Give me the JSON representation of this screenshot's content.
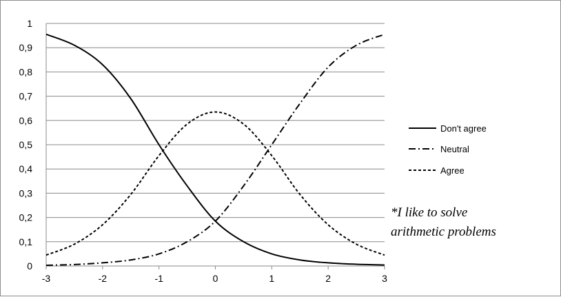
{
  "chart_data": {
    "type": "line",
    "title": "",
    "xlabel": "",
    "ylabel": "",
    "xlim": [
      -3,
      3
    ],
    "ylim": [
      0,
      1
    ],
    "x_ticks": [
      "-3",
      "-2",
      "-1",
      "0",
      "1",
      "2",
      "3"
    ],
    "y_ticks": [
      "0",
      "0,1",
      "0,2",
      "0,3",
      "0,4",
      "0,5",
      "0,6",
      "0,7",
      "0,8",
      "0,9",
      "1"
    ],
    "grid": "horizontal",
    "legend_position": "right",
    "x": [
      -3,
      -2.5,
      -2,
      -1.5,
      -1,
      -0.5,
      0,
      0.5,
      1,
      1.5,
      2,
      2.5,
      3
    ],
    "series": [
      {
        "name": "Don't agree",
        "line_style": "solid",
        "values": [
          0.955,
          0.91,
          0.83,
          0.69,
          0.5,
          0.33,
          0.185,
          0.1,
          0.05,
          0.025,
          0.013,
          0.007,
          0.004
        ]
      },
      {
        "name": "Neutral",
        "line_style": "dash-dot",
        "values": [
          0.003,
          0.006,
          0.013,
          0.025,
          0.05,
          0.1,
          0.185,
          0.33,
          0.5,
          0.67,
          0.82,
          0.91,
          0.955
        ]
      },
      {
        "name": "Agree",
        "line_style": "dashed",
        "values": [
          0.045,
          0.09,
          0.17,
          0.295,
          0.455,
          0.585,
          0.635,
          0.585,
          0.455,
          0.295,
          0.17,
          0.09,
          0.045
        ]
      }
    ],
    "annotation": {
      "line1": "*I like to solve",
      "line2": "arithmetic problems"
    },
    "colors": {
      "line": "#000000",
      "grid": "#888888",
      "axis": "#888888"
    }
  }
}
